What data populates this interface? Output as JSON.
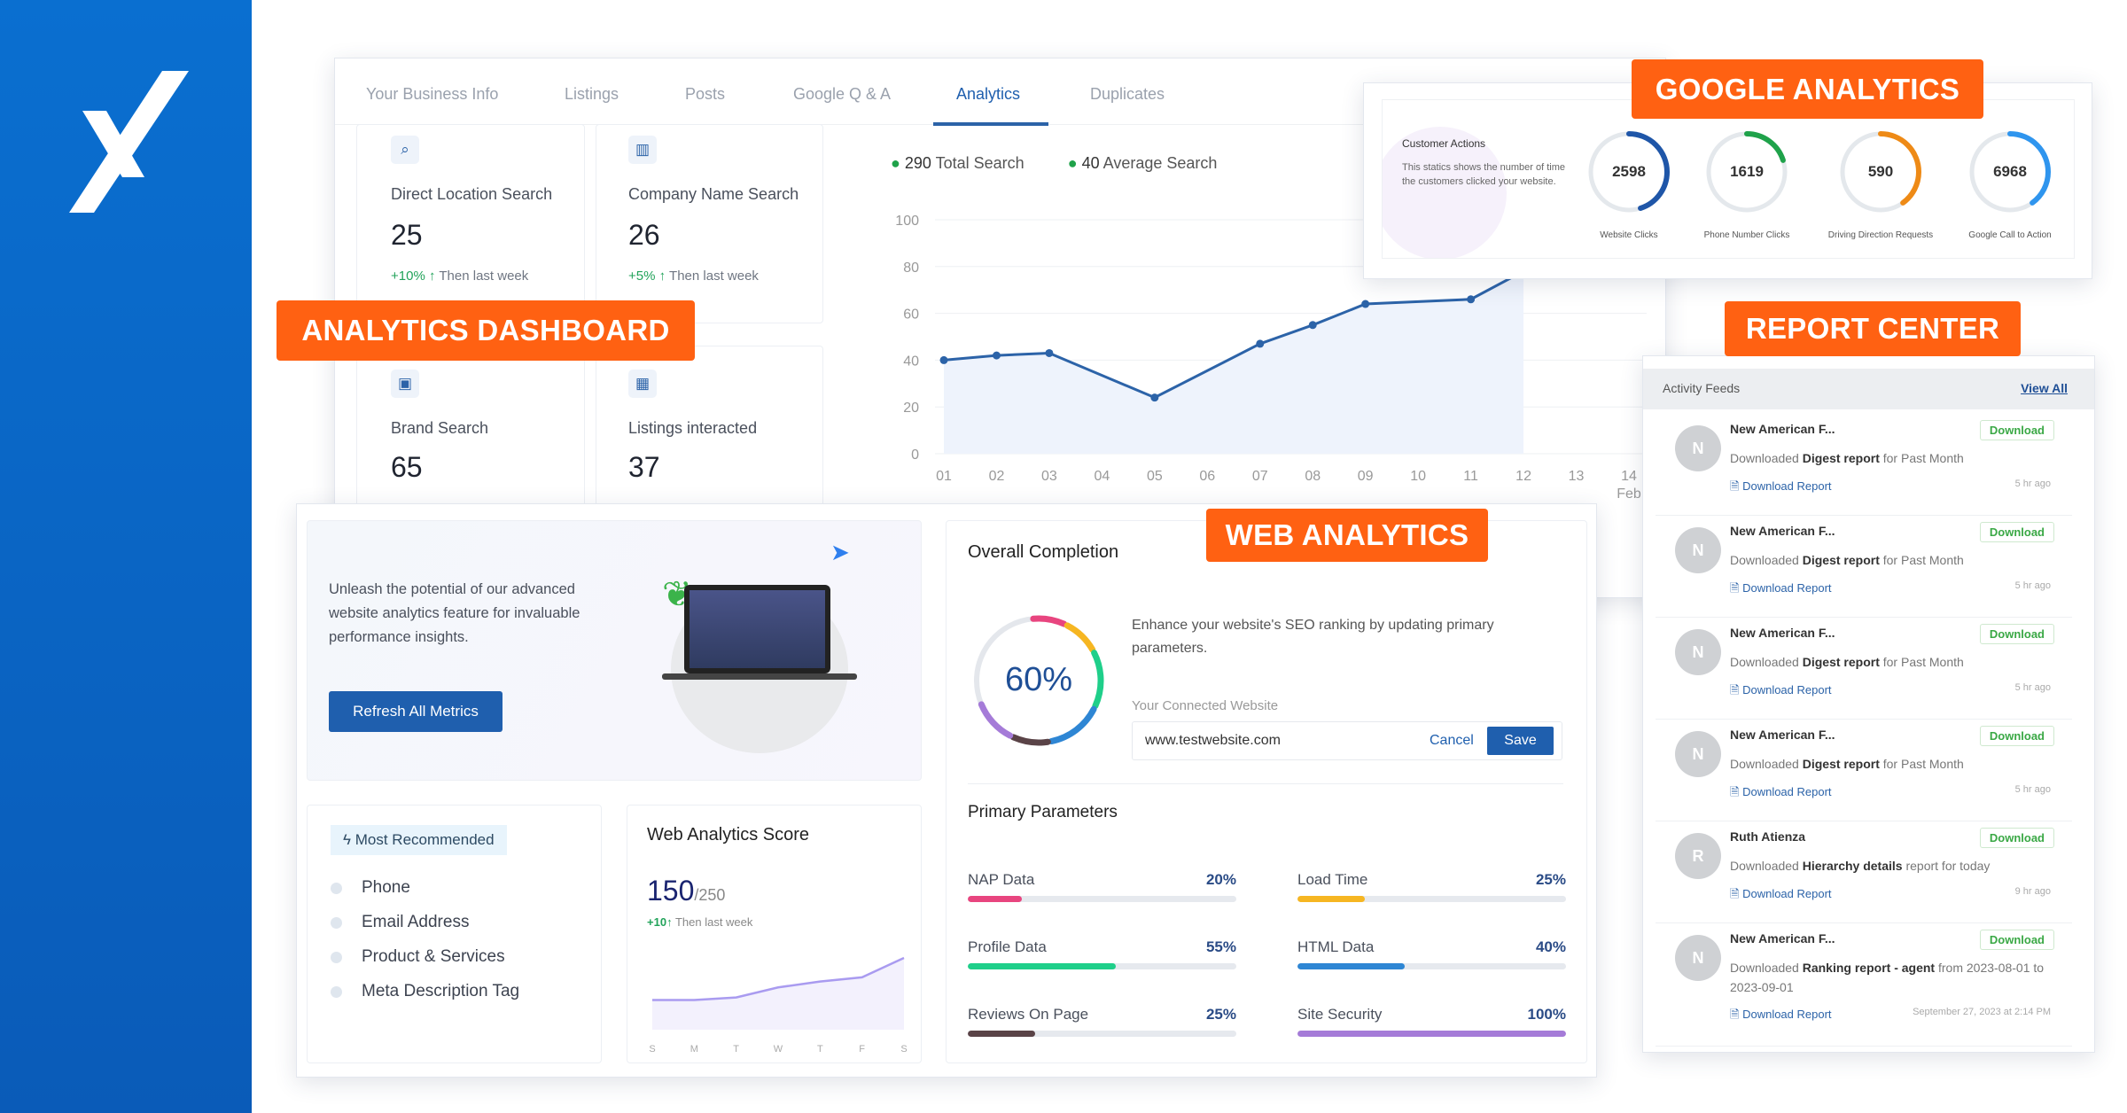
{
  "brand": {
    "logo": "X",
    "colors": {
      "sidebar": "#0a6fd0",
      "accent": "#ff6112",
      "primary": "#1f5fae"
    }
  },
  "labels": {
    "analytics_dashboard": "ANALYTICS DASHBOARD",
    "google_analytics": "GOOGLE ANALYTICS",
    "report_center": "REPORT CENTER",
    "web_analytics": "WEB ANALYTICS"
  },
  "tabs": [
    {
      "label": "Your Business Info"
    },
    {
      "label": "Listings"
    },
    {
      "label": "Posts"
    },
    {
      "label": "Google Q & A"
    },
    {
      "label": "Analytics",
      "active": true
    },
    {
      "label": "Duplicates"
    }
  ],
  "stats": [
    {
      "label": "Direct Location Search",
      "value": "25",
      "delta": "+10%",
      "note": "Then last week",
      "icon": "location-search-icon"
    },
    {
      "label": "Company Name Search",
      "value": "26",
      "delta": "+5%",
      "note": "Then last week",
      "icon": "building-icon"
    },
    {
      "label": "Brand Search",
      "value": "65",
      "icon": "monitor-icon"
    },
    {
      "label": "Listings interacted",
      "value": "37",
      "icon": "calculator-icon"
    }
  ],
  "chart_data": {
    "type": "area",
    "legend": [
      {
        "value": "290",
        "label": "Total Search"
      },
      {
        "value": "40",
        "label": "Average Search"
      }
    ],
    "categories": [
      "01",
      "02",
      "03",
      "04",
      "05",
      "06",
      "07",
      "08",
      "09",
      "10",
      "11",
      "12",
      "13",
      "14"
    ],
    "x_last_sublabel": "Feb",
    "values": [
      40,
      42,
      43,
      null,
      24,
      null,
      47,
      55,
      64,
      null,
      66,
      78,
      null,
      null
    ],
    "yticks": [
      0,
      20,
      40,
      60,
      80,
      100
    ],
    "ylim": [
      0,
      100
    ],
    "grid": true,
    "color": "#2c63a8"
  },
  "google_analytics": {
    "title": "Customer Actions",
    "description": "This statics shows the number of time the customers clicked your website.",
    "gauges": [
      {
        "value": "2598",
        "label": "Website Clicks",
        "color": "#1f56a8",
        "fraction": 0.45
      },
      {
        "value": "1619",
        "label": "Phone Number Clicks",
        "color": "#1fa24a",
        "fraction": 0.2
      },
      {
        "value": "590",
        "label": "Driving Direction Requests",
        "color": "#ee8a16",
        "fraction": 0.4
      },
      {
        "value": "6968",
        "label": "Google Call to Action",
        "color": "#2f95ee",
        "fraction": 0.4
      }
    ]
  },
  "report": {
    "title": "Activity Feeds",
    "view_all": "View All",
    "badge": "Download",
    "link": "Download Report",
    "items": [
      {
        "initial": "N",
        "name": "New American F...",
        "pre": "Downloaded ",
        "bold": "Digest report",
        "post": " for Past Month",
        "time": "5 hr ago"
      },
      {
        "initial": "N",
        "name": "New American F...",
        "pre": "Downloaded ",
        "bold": "Digest report",
        "post": " for Past Month",
        "time": "5 hr ago"
      },
      {
        "initial": "N",
        "name": "New American F...",
        "pre": "Downloaded ",
        "bold": "Digest report",
        "post": " for Past Month",
        "time": "5 hr ago"
      },
      {
        "initial": "N",
        "name": "New American F...",
        "pre": "Downloaded ",
        "bold": "Digest report",
        "post": " for Past Month",
        "time": "5 hr ago"
      },
      {
        "initial": "R",
        "name": "Ruth Atienza",
        "pre": "Downloaded ",
        "bold": "Hierarchy details",
        "post": " report for today",
        "time": "9 hr ago"
      },
      {
        "initial": "N",
        "name": "New American F...",
        "pre": "Downloaded ",
        "bold": "Ranking report - agent",
        "post": " from 2023-08-01 to 2023-09-01",
        "time": "September 27, 2023 at 2:14 PM"
      }
    ]
  },
  "web": {
    "banner_text": "Unleash the potential of our advanced website analytics feature for invaluable performance insights.",
    "refresh_button": "Refresh All Metrics",
    "recommended_title": "Most Recommended",
    "recommended": [
      "Phone",
      "Email Address",
      "Product & Services",
      "Meta Description Tag"
    ],
    "score_title": "Web Analytics Score",
    "score": "150",
    "score_max": "/250",
    "score_delta": "+10",
    "score_note": "Then last week",
    "score_days": [
      "S",
      "M",
      "T",
      "W",
      "T",
      "F",
      "S"
    ],
    "score_values": [
      30,
      30,
      33,
      45,
      52,
      57,
      80
    ],
    "completion_title": "Overall Completion",
    "completion": "60%",
    "completion_desc": "Enhance your website's SEO ranking by updating primary parameters.",
    "website_label": "Your Connected Website",
    "website_value": "www.testwebsite.com",
    "cancel": "Cancel",
    "save": "Save",
    "params_title": "Primary Parameters",
    "params": [
      {
        "label": "NAP Data",
        "value": "20%",
        "pct": 20,
        "color": "#e8457f"
      },
      {
        "label": "Load Time",
        "value": "25%",
        "pct": 25,
        "color": "#f6b622"
      },
      {
        "label": "Profile Data",
        "value": "55%",
        "pct": 55,
        "color": "#1fcf8a"
      },
      {
        "label": "HTML Data",
        "value": "40%",
        "pct": 40,
        "color": "#2e86d4"
      },
      {
        "label": "Reviews On Page",
        "value": "25%",
        "pct": 25,
        "color": "#5a4347"
      },
      {
        "label": "Site Security",
        "value": "100%",
        "pct": 100,
        "color": "#a57bd8"
      }
    ]
  }
}
